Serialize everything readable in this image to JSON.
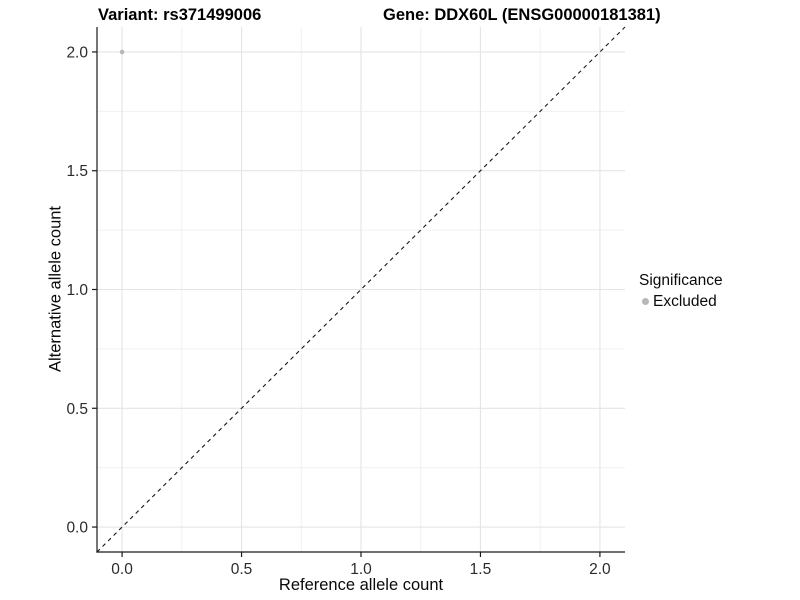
{
  "chart_data": {
    "type": "scatter",
    "title_left": "Variant: rs371499006",
    "title_right": "Gene: DDX60L (ENSG00000181381)",
    "xlabel": "Reference allele count",
    "ylabel": "Alternative allele count",
    "xlim": [
      -0.105,
      2.105
    ],
    "ylim": [
      -0.105,
      2.105
    ],
    "x_major_ticks": [
      0.0,
      0.5,
      1.0,
      1.5,
      2.0
    ],
    "y_major_ticks": [
      0.0,
      0.5,
      1.0,
      1.5,
      2.0
    ],
    "x_minor_ticks": [
      0.25,
      0.75,
      1.25,
      1.75
    ],
    "y_minor_ticks": [
      0.25,
      0.75,
      1.25,
      1.75
    ],
    "tick_decimals": 1,
    "grid": "major+minor",
    "points": [
      {
        "x": 0.0,
        "y": 2.0,
        "series": "Excluded"
      }
    ],
    "reference_line": {
      "type": "identity",
      "style": "dashed"
    },
    "legend": {
      "title": "Significance",
      "position": "right",
      "entries": [
        {
          "label": "Excluded",
          "color": "#b8b8b8"
        }
      ]
    },
    "colors": {
      "background": "#ffffff",
      "point": "#b8b8b8",
      "grid_major": "#e4e4e4",
      "grid_minor": "#efefef",
      "axis": "#1a1a1a",
      "reference_line": "#1a1a1a",
      "tick_label": "#2b2b2b",
      "title": "#000000"
    }
  }
}
